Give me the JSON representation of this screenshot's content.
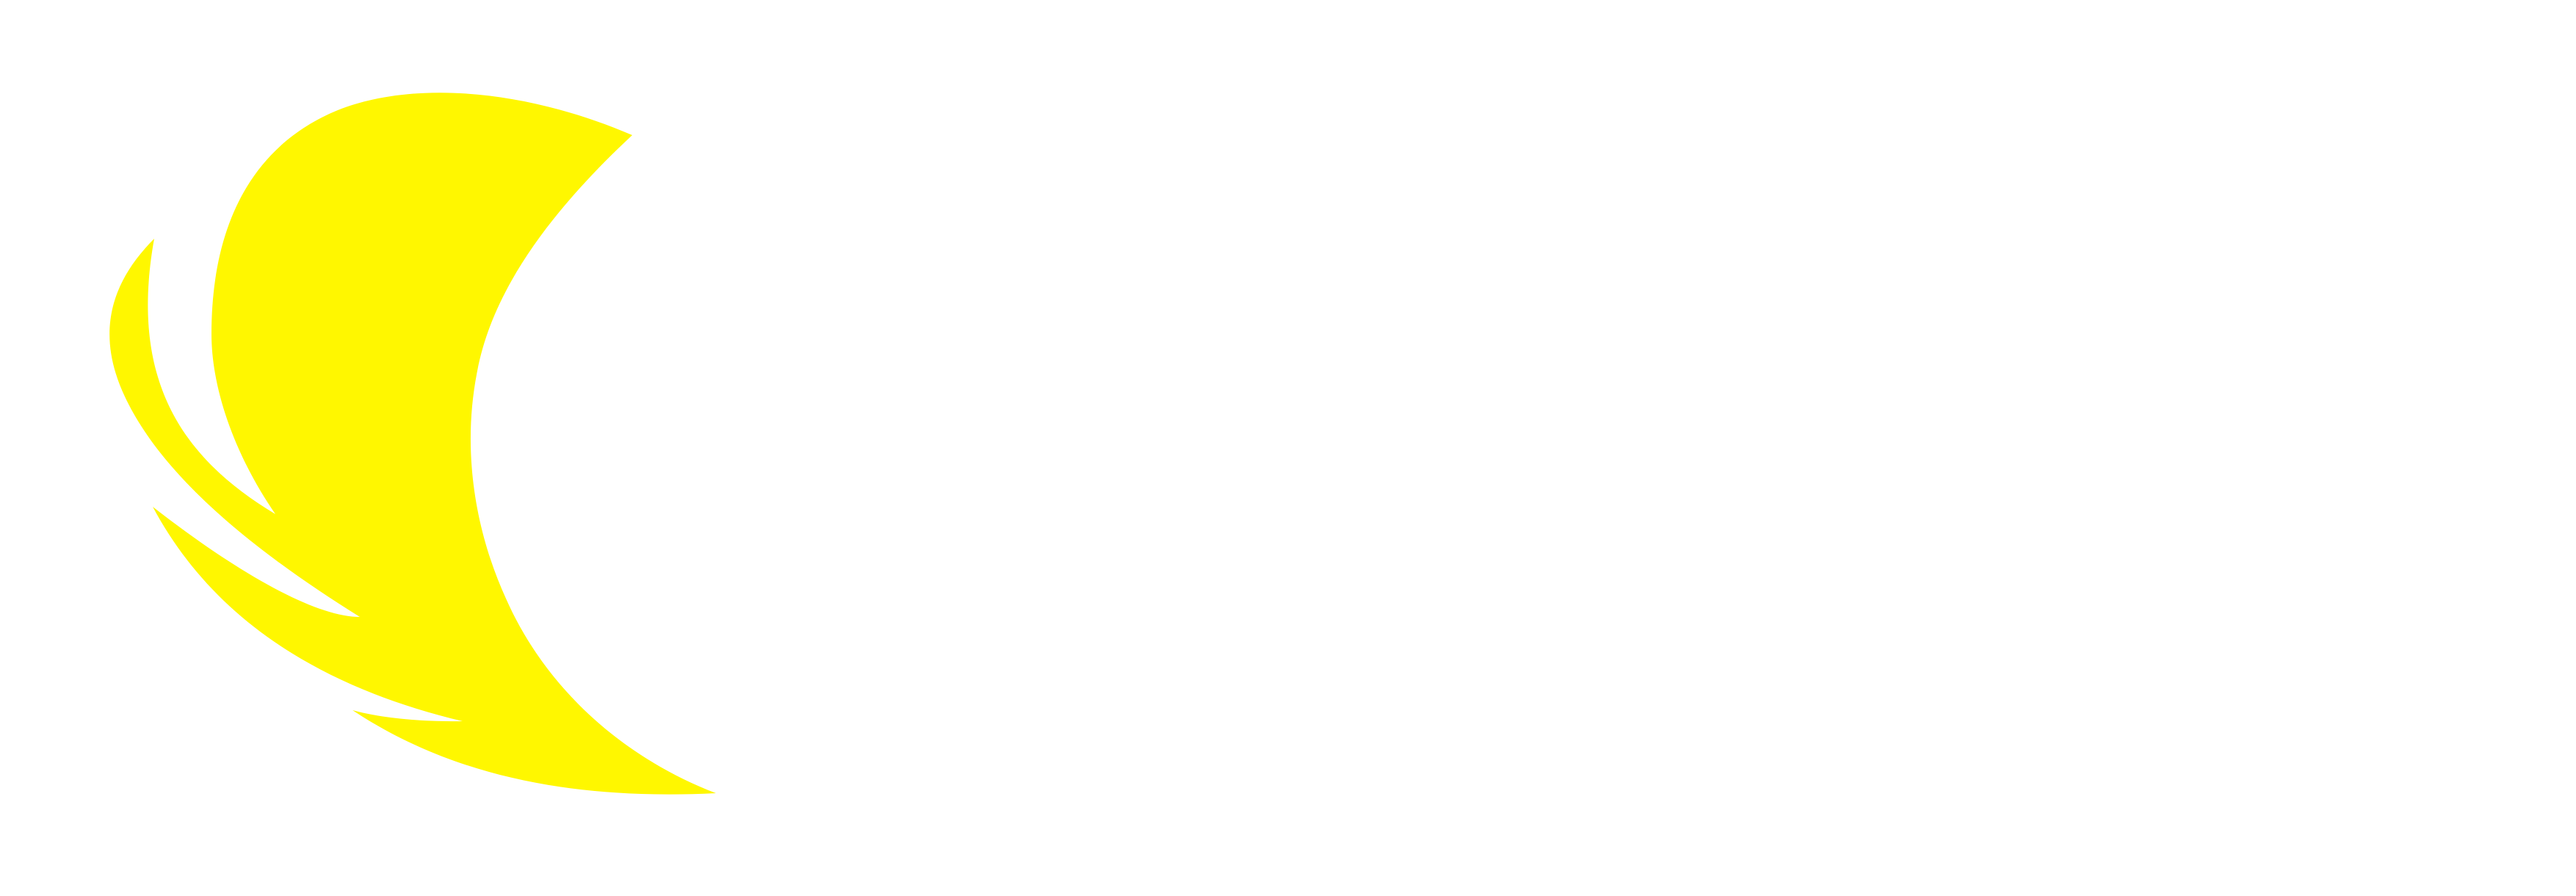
{
  "logo": {
    "icon": "flame-wing-icon",
    "color": "#FFF700",
    "background": "#FFFFFF"
  }
}
